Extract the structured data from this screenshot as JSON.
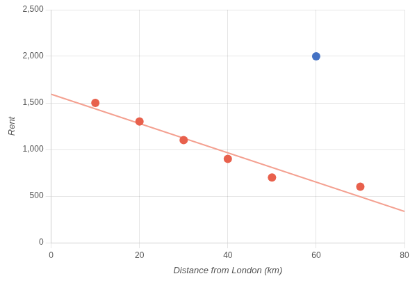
{
  "chart_data": {
    "type": "scatter",
    "xlabel": "Distance from London (km)",
    "ylabel": "Rent",
    "series": [
      {
        "type": "line",
        "color": "#F4A090",
        "line_style": "solid",
        "x": [
          0,
          80
        ],
        "values": [
          1592.857142857143,
          335.7142857142857
        ]
      },
      {
        "type": "scatter",
        "color": "#E8604C",
        "marker": "circle",
        "x": [
          10,
          20,
          30,
          40,
          50,
          70
        ],
        "values": [
          1500,
          1300,
          1100,
          900,
          700,
          600
        ]
      },
      {
        "type": "scatter",
        "color": "#4472C4",
        "marker": "circle",
        "x": [
          60
        ],
        "values": [
          2000
        ]
      }
    ],
    "xlim": [
      0,
      80
    ],
    "ylim": [
      0,
      2500
    ],
    "xticks": [
      0,
      20,
      40,
      60,
      80
    ],
    "yticks": [
      0,
      500,
      {
        "value": 1000,
        "label": "1,000"
      },
      {
        "value": 1500,
        "label": "1,500"
      },
      {
        "value": 2000,
        "label": "2,000"
      },
      {
        "value": 2500,
        "label": "2,500"
      }
    ],
    "grid": true
  }
}
